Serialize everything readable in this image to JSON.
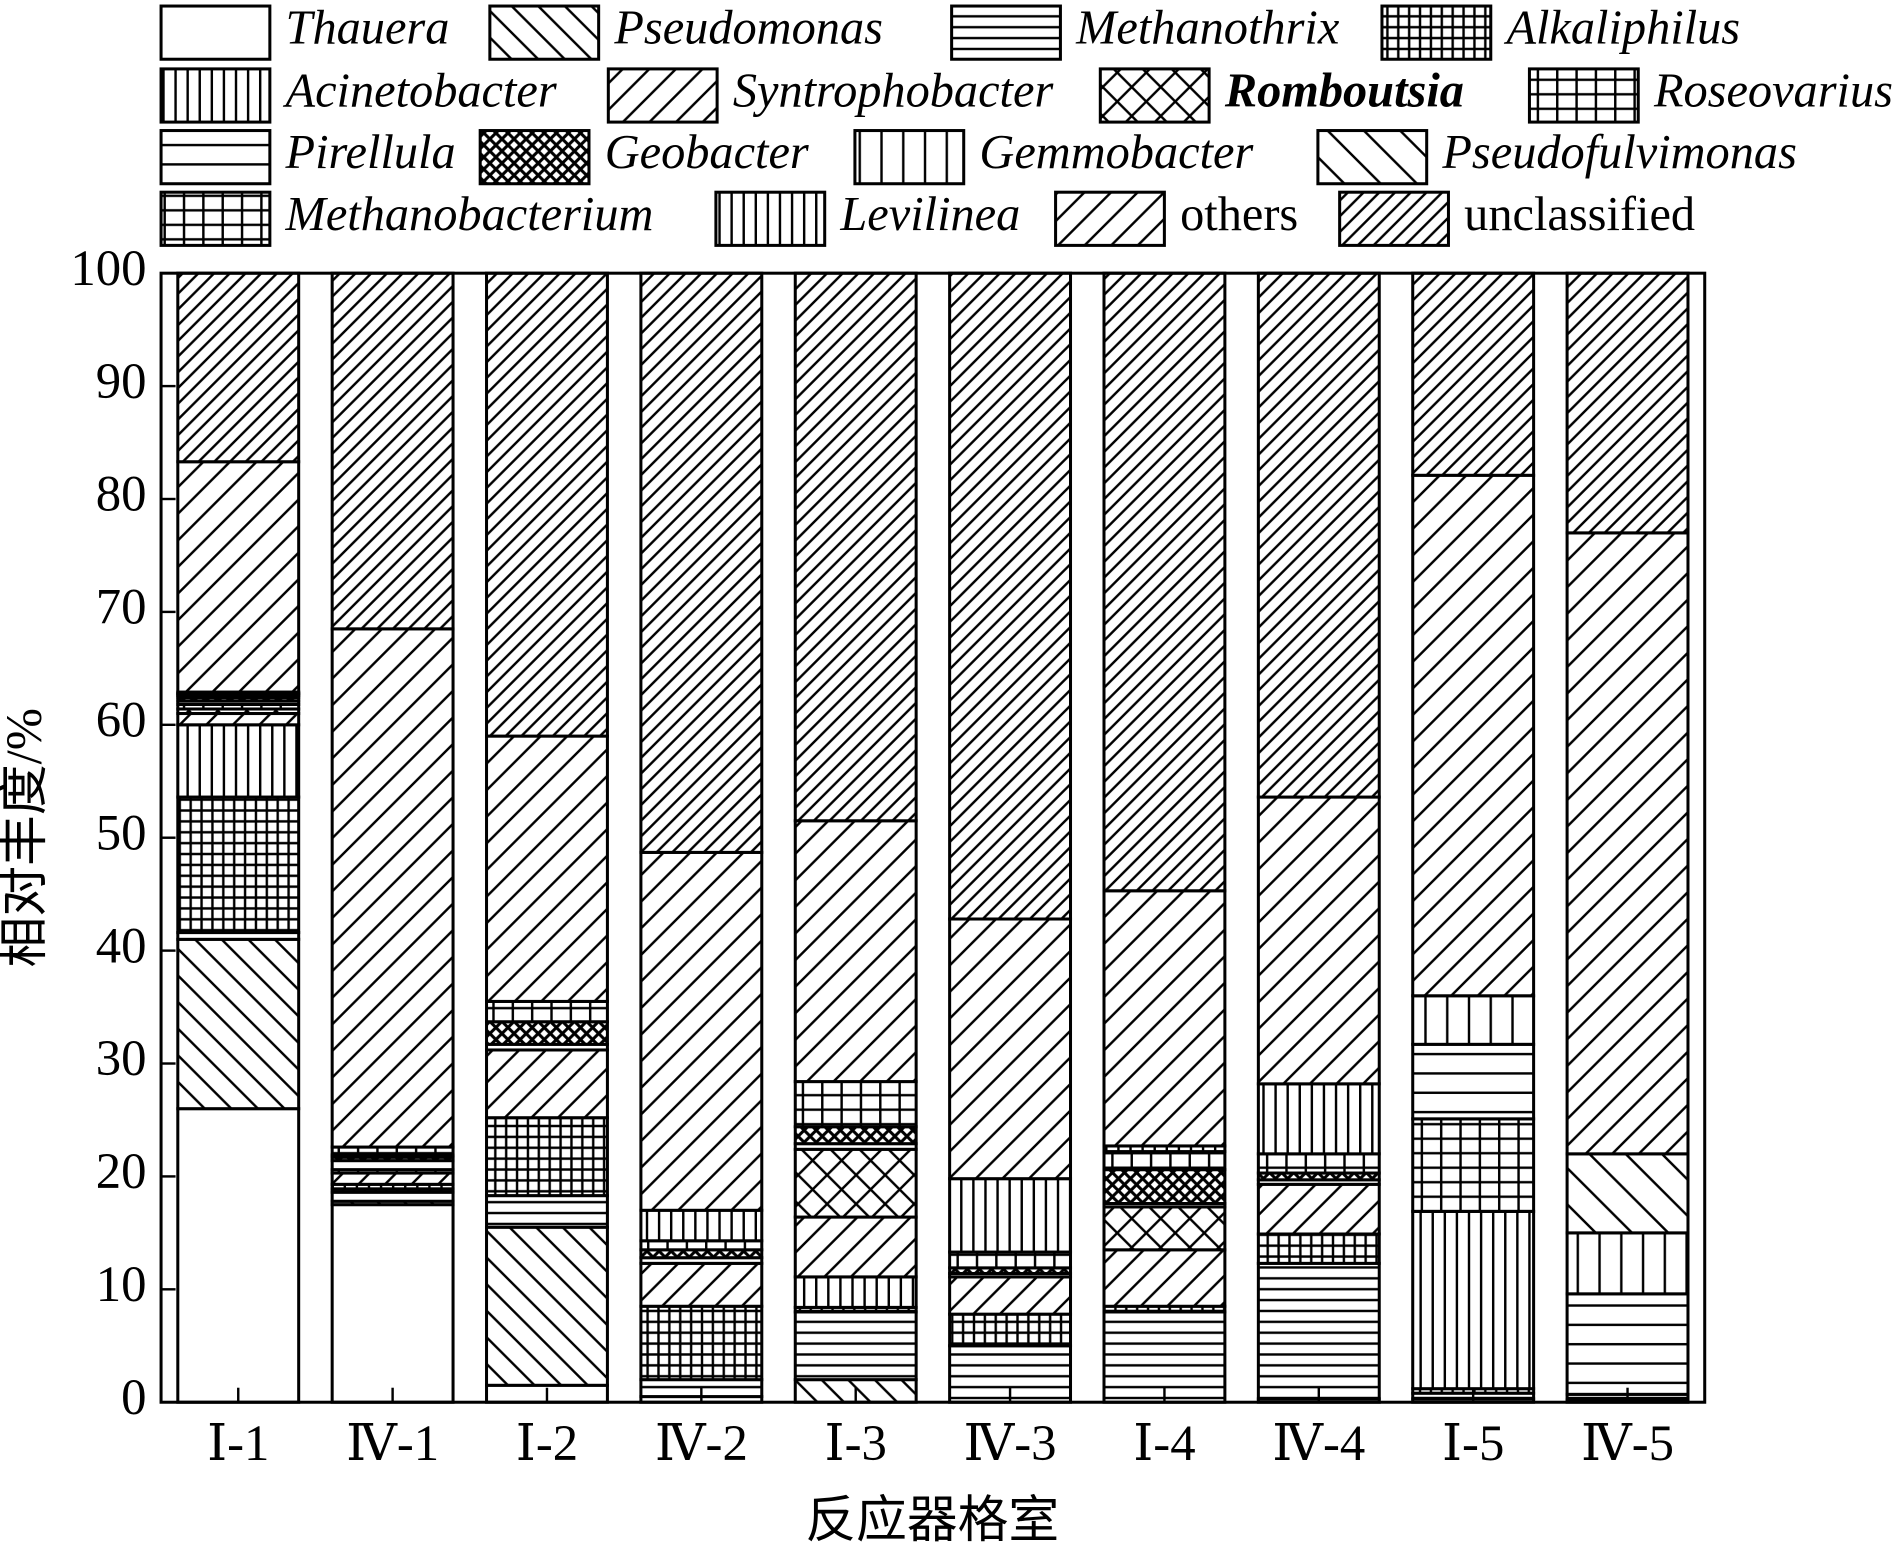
{
  "chart_data": {
    "type": "stacked_bar",
    "x_label": "反应器格室",
    "y_label": "相对丰度/%",
    "categories": [
      "Ⅰ-1",
      "Ⅳ-1",
      "Ⅰ-2",
      "Ⅳ-2",
      "Ⅰ-3",
      "Ⅳ-3",
      "Ⅰ-4",
      "Ⅳ-4",
      "Ⅰ-5",
      "Ⅳ-5"
    ],
    "ylim": [
      0,
      100
    ],
    "yticks": [
      0,
      10,
      20,
      30,
      40,
      50,
      60,
      70,
      80,
      90,
      100
    ],
    "series": [
      {
        "name": "Thauera",
        "pattern": "blank",
        "values": [
          26,
          17.5,
          1.5,
          0.5,
          0,
          0,
          0,
          0.3,
          0.3,
          0.2
        ]
      },
      {
        "name": "Pseudomonas",
        "pattern": "back",
        "values": [
          15,
          0.3,
          14,
          0,
          2,
          0,
          0,
          0,
          0,
          0
        ]
      },
      {
        "name": "Methanothrix",
        "pattern": "hdense",
        "values": [
          0.6,
          0.8,
          2.8,
          1.5,
          6,
          5,
          8,
          12,
          0.5,
          0.5
        ]
      },
      {
        "name": "Alkaliphilus",
        "pattern": "griddense",
        "values": [
          12,
          0.3,
          6.9,
          6.5,
          0.4,
          2.8,
          0.5,
          2.6,
          0.4,
          0
        ]
      },
      {
        "name": "Acinetobacter",
        "pattern": "vdense",
        "values": [
          6.4,
          0.4,
          0,
          0,
          2.7,
          0,
          0,
          0,
          15.7,
          0
        ]
      },
      {
        "name": "Syntrophobacter",
        "pattern": "fwd",
        "values": [
          1,
          1,
          6,
          3.8,
          5.3,
          3.3,
          5,
          4.4,
          0,
          0
        ]
      },
      {
        "name": "Romboutsia",
        "pattern": "xhatch",
        "values": [
          0.4,
          0,
          0,
          0,
          6,
          0,
          3.8,
          0,
          0,
          0
        ]
      },
      {
        "name": "Roseovarius",
        "pattern": "grid",
        "values": [
          0.4,
          0.3,
          0,
          0,
          0,
          0,
          0,
          0,
          8.2,
          0
        ]
      },
      {
        "name": "Pirellula",
        "pattern": "hsparse",
        "values": [
          0.3,
          0.8,
          0.5,
          0.5,
          0.5,
          0.3,
          0.3,
          0.4,
          6.6,
          8.9
        ]
      },
      {
        "name": "Geobacter",
        "pattern": "xdense",
        "values": [
          0.3,
          0.3,
          2,
          0.7,
          1.5,
          0.5,
          3,
          0.6,
          0,
          0
        ]
      },
      {
        "name": "Gemmobacter",
        "pattern": "vsparse",
        "values": [
          0.2,
          0.2,
          0,
          0,
          0,
          0,
          0,
          0,
          4.3,
          5.4
        ]
      },
      {
        "name": "Pseudofulvimonas",
        "pattern": "backsparse",
        "values": [
          0.1,
          0,
          0,
          0,
          0,
          0,
          0,
          0,
          0,
          7
        ]
      },
      {
        "name": "Methanobacterium",
        "pattern": "grid",
        "values": [
          0.1,
          0.7,
          1.8,
          0.8,
          4,
          1.4,
          1.6,
          1.7,
          0,
          0
        ]
      },
      {
        "name": "Levilinea",
        "pattern": "vdense",
        "values": [
          0.1,
          0,
          0,
          2.7,
          0,
          6.5,
          0.5,
          6.2,
          0,
          0
        ]
      },
      {
        "name": "others",
        "pattern": "fwd",
        "values": [
          20.4,
          45.9,
          23.5,
          31.7,
          23.1,
          23,
          22.6,
          25.4,
          46.1,
          55
        ]
      },
      {
        "name": "unclassified",
        "pattern": "fwddense",
        "values": [
          16.7,
          31.5,
          41,
          51.3,
          48.5,
          57.2,
          54.7,
          46.4,
          17.9,
          23
        ]
      }
    ]
  }
}
